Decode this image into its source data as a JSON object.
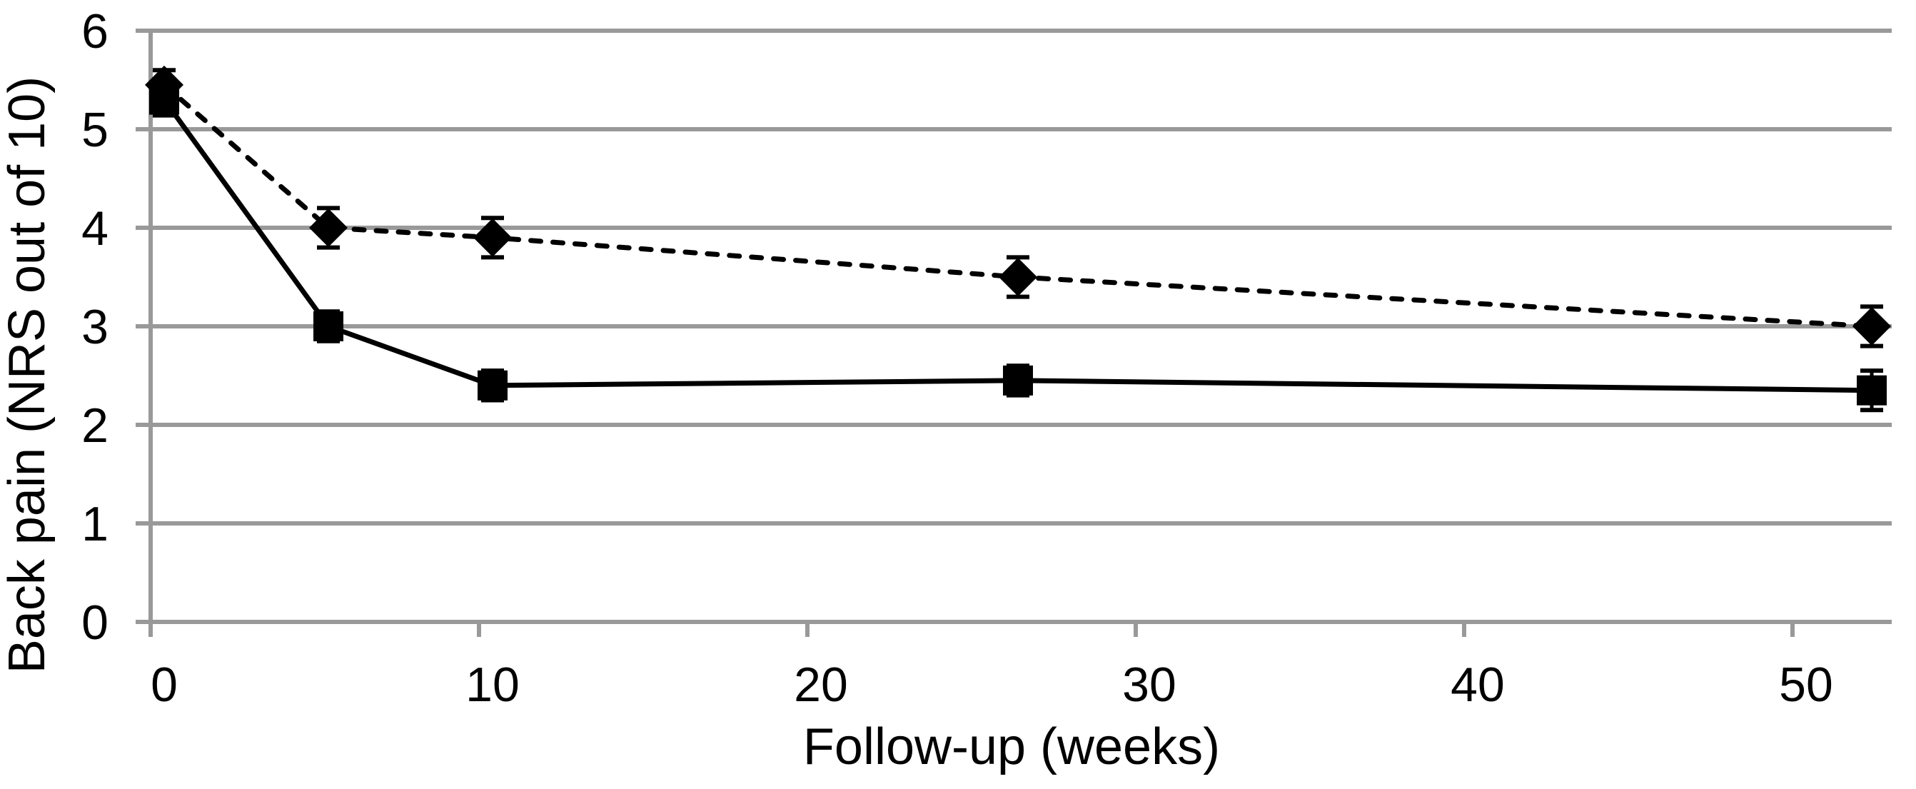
{
  "chart_data": {
    "type": "line",
    "title": "",
    "xlabel": "Follow-up (weeks)",
    "ylabel": "Back pain (NRS out of 10)",
    "x": [
      0,
      5,
      10,
      26,
      52
    ],
    "series": [
      {
        "name": "dashed-diamond-series",
        "marker": "diamond",
        "line_style": "dashed",
        "values": [
          5.45,
          4.0,
          3.9,
          3.5,
          3.0
        ],
        "errors": [
          0.15,
          0.2,
          0.2,
          0.2,
          0.2
        ]
      },
      {
        "name": "solid-square-series",
        "marker": "square",
        "line_style": "solid",
        "values": [
          5.3,
          3.0,
          2.4,
          2.45,
          2.35
        ],
        "errors": [
          0.16,
          0.15,
          0.15,
          0.15,
          0.2
        ]
      }
    ],
    "x_ticks": [
      0,
      10,
      20,
      30,
      40,
      50
    ],
    "y_ticks": [
      0,
      1,
      2,
      3,
      4,
      5,
      6
    ],
    "ylim": [
      0,
      6
    ],
    "xlim": [
      -0.4,
      52.6
    ],
    "grid": "horizontal",
    "legend": "none",
    "colors": {
      "series": "#000000",
      "grid": "#999999",
      "axis": "#999999",
      "text": "#000000",
      "background": "#ffffff"
    }
  }
}
